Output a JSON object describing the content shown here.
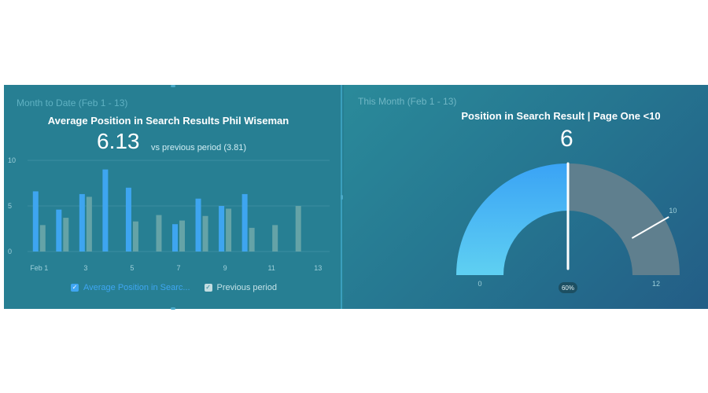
{
  "left_panel": {
    "subtitle": "Month to Date (Feb 1 - 13)",
    "title": "Average Position in Search Results Phil Wiseman",
    "value": "6.13",
    "comparison": "vs previous period (3.81)",
    "legend": [
      {
        "label": "Average Position in Searc...",
        "checked": true,
        "check_glyph": "✓"
      },
      {
        "label": "Previous period",
        "checked": true,
        "check_glyph": "✓"
      }
    ]
  },
  "right_panel": {
    "subtitle": "This Month (Feb 1 - 13)",
    "title": "Position in Search Result | Page One <10",
    "value": "6"
  },
  "colors": {
    "primary_bar": "#3ea5f0",
    "previous_bar": "#65a3a7",
    "gauge_fill_top": "#3aa3f5",
    "gauge_fill_bottom": "#5fd0f2",
    "gauge_remainder": "#5f7f8e",
    "grid": "#3b8ea0",
    "tick_text": "#9fd0da"
  },
  "chart_data": [
    {
      "type": "bar",
      "x": [
        1,
        2,
        3,
        4,
        5,
        6,
        7,
        8,
        9,
        10,
        11,
        12,
        13
      ],
      "tick_labels": [
        "Feb 1",
        "3",
        "5",
        "7",
        "9",
        "11",
        "13"
      ],
      "tick_positions": [
        1,
        3,
        5,
        7,
        9,
        11,
        13
      ],
      "ylim": [
        0,
        10
      ],
      "yticks": [
        0,
        5,
        10
      ],
      "grid": true,
      "legend_position": "bottom",
      "series": [
        {
          "name": "Average Position in Searc...",
          "values": [
            6.6,
            4.6,
            6.3,
            9.0,
            7.0,
            null,
            3.0,
            5.8,
            5.0,
            6.3,
            null,
            null,
            null
          ]
        },
        {
          "name": "Previous period",
          "values": [
            2.9,
            3.7,
            6.0,
            null,
            3.3,
            4.0,
            3.4,
            3.9,
            4.7,
            2.6,
            2.9,
            5.0,
            null
          ]
        }
      ]
    },
    {
      "type": "gauge",
      "value": 6,
      "min": 0,
      "max": 12,
      "target": 10,
      "labels": [
        "0",
        "10",
        "12"
      ],
      "percent_label": "60%"
    }
  ]
}
